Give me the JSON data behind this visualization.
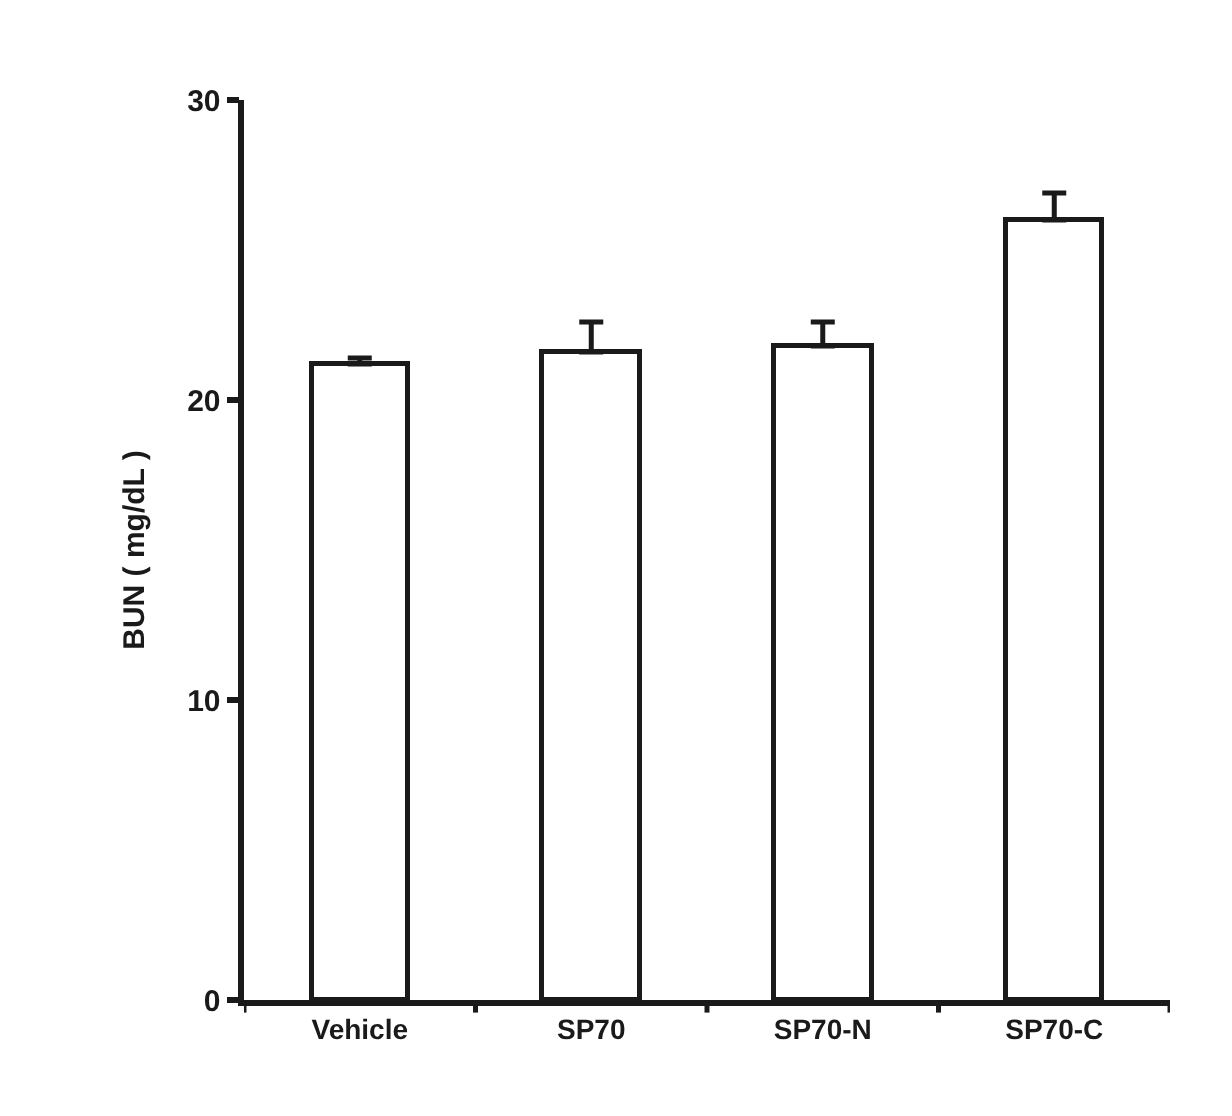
{
  "chart_data": {
    "type": "bar",
    "ylabel": "BUN ( mg/dL )",
    "categories": [
      "Vehicle",
      "SP70",
      "SP70-N",
      "SP70-C"
    ],
    "values": [
      21.2,
      21.6,
      21.8,
      26.0
    ],
    "errors": [
      [
        21.2,
        21.4
      ],
      [
        21.6,
        22.6
      ],
      [
        21.8,
        22.6
      ],
      [
        26.0,
        26.9
      ]
    ],
    "color": "#ffffff",
    "ylim": [
      0,
      30
    ],
    "yticks": [
      0,
      10,
      20,
      30
    ]
  }
}
